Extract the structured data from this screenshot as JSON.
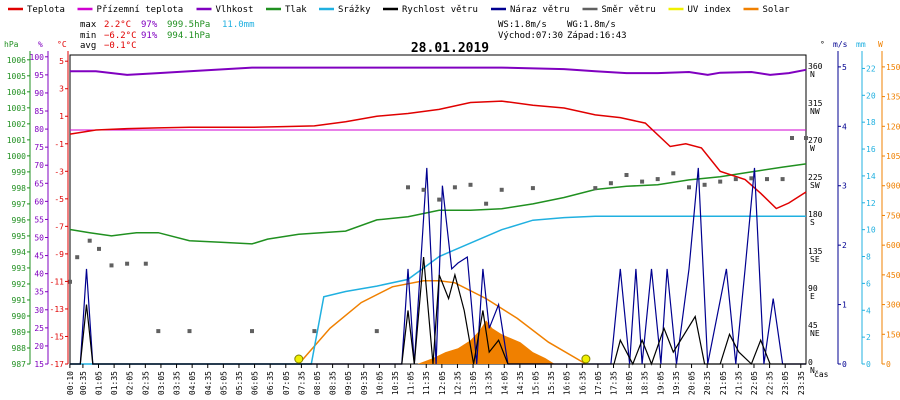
{
  "legend": [
    {
      "label": "Teplota",
      "color": "#e00000"
    },
    {
      "label": "Přízemní teplota",
      "color": "#d000d0"
    },
    {
      "label": "Vlhkost",
      "color": "#8000c0"
    },
    {
      "label": "Tlak",
      "color": "#209020"
    },
    {
      "label": "Srážky",
      "color": "#20b0e0"
    },
    {
      "label": "Rychlost větru",
      "color": "#000000"
    },
    {
      "label": "Náraz větru",
      "color": "#000090"
    },
    {
      "label": "Směr větru",
      "color": "#606060"
    },
    {
      "label": "UV index",
      "color": "#f0f000"
    },
    {
      "label": "Solar",
      "color": "#f08000"
    }
  ],
  "stats": {
    "max_label": "max",
    "max_temp": "2.2°C",
    "max_hum": "97%",
    "max_press": "999.5hPa",
    "max_rain": "11.0mm",
    "min_label": "min",
    "min_temp": "−6.2°C",
    "min_hum": "91%",
    "min_press": "994.1hPa",
    "avg_label": "avg",
    "avg_temp": "−0.1°C",
    "ws": "WS:1.8m/s",
    "wg": "WG:1.8m/s",
    "sunrise": "Východ:07:30",
    "sunset": "Západ:16:43"
  },
  "date": "28.01.2019",
  "axes": {
    "hpa_unit": "hPa",
    "pct_unit": "%",
    "c_unit": "°C",
    "deg_unit": "°",
    "ms_unit": "m/s",
    "mm_unit": "mm",
    "w_unit": "W",
    "x_unit": "čas",
    "hpa_ticks": [
      "1006",
      "1005",
      "1004",
      "1003",
      "1002",
      "1001",
      "1000",
      "999",
      "998",
      "997",
      "996",
      "995",
      "994",
      "993",
      "992",
      "991",
      "990",
      "989",
      "988",
      "987"
    ],
    "pct_ticks": [
      "100",
      "95",
      "90",
      "85",
      "80",
      "75",
      "70",
      "65",
      "60",
      "55",
      "50",
      "45",
      "40",
      "35",
      "30",
      "25",
      "20",
      "15"
    ],
    "c_ticks": [
      "5",
      "3",
      "1",
      "-1",
      "-3",
      "-5",
      "-7",
      "-9",
      "-11",
      "-13",
      "-15",
      "-17"
    ],
    "deg_ticks": [
      "360",
      "315",
      "270",
      "225",
      "180",
      "135",
      "90",
      "45",
      "0"
    ],
    "dir_labels": [
      "N",
      "NW",
      "W",
      "SW",
      "S",
      "SE",
      "E",
      "NE",
      "N"
    ],
    "ms_ticks": [
      "5",
      "4",
      "3",
      "2",
      "1",
      "0"
    ],
    "mm_ticks": [
      "22",
      "20",
      "18",
      "16",
      "14",
      "12",
      "10",
      "8",
      "6",
      "4",
      "2",
      "0"
    ],
    "w_ticks": [
      "1500",
      "1350",
      "1200",
      "1050",
      "900",
      "750",
      "600",
      "450",
      "300",
      "150",
      "0"
    ],
    "x_ticks": [
      "00:10",
      "00:35",
      "01:05",
      "01:35",
      "02:05",
      "02:35",
      "03:05",
      "03:35",
      "04:05",
      "04:35",
      "05:05",
      "05:35",
      "06:05",
      "06:35",
      "07:05",
      "07:35",
      "08:05",
      "08:35",
      "09:05",
      "09:35",
      "10:05",
      "10:35",
      "11:05",
      "11:35",
      "12:05",
      "12:35",
      "13:05",
      "13:35",
      "14:05",
      "14:35",
      "15:05",
      "15:35",
      "16:05",
      "16:35",
      "17:05",
      "17:35",
      "18:05",
      "18:35",
      "19:05",
      "19:35",
      "20:05",
      "20:35",
      "21:05",
      "21:35",
      "22:05",
      "22:35",
      "23:05",
      "23:35"
    ]
  },
  "chart_data": {
    "type": "line",
    "title": "28.01.2019",
    "x_range_hours": [
      0.17,
      23.75
    ],
    "series": [
      {
        "name": "Teplota",
        "unit": "°C",
        "color": "#e00000",
        "points": [
          [
            0.17,
            -0.3
          ],
          [
            1,
            0.0
          ],
          [
            2,
            0.1
          ],
          [
            3,
            0.15
          ],
          [
            4,
            0.2
          ],
          [
            6,
            0.2
          ],
          [
            7,
            0.25
          ],
          [
            8,
            0.3
          ],
          [
            9,
            0.6
          ],
          [
            10,
            1.0
          ],
          [
            11,
            1.2
          ],
          [
            12,
            1.5
          ],
          [
            13,
            2.0
          ],
          [
            14,
            2.1
          ],
          [
            15,
            1.8
          ],
          [
            16,
            1.6
          ],
          [
            17,
            1.1
          ],
          [
            17.8,
            0.9
          ],
          [
            18.6,
            0.5
          ],
          [
            19.4,
            -1.2
          ],
          [
            19.9,
            -1.0
          ],
          [
            20.4,
            -1.3
          ],
          [
            21,
            -3.0
          ],
          [
            21.8,
            -3.6
          ],
          [
            22.3,
            -4.6
          ],
          [
            22.8,
            -5.7
          ],
          [
            23.2,
            -5.3
          ],
          [
            23.75,
            -4.5
          ]
        ]
      },
      {
        "name": "Přízemní teplota",
        "unit": "°C",
        "color": "#d000d0",
        "points": [
          [
            0.17,
            0.0
          ],
          [
            23.75,
            0.0
          ]
        ]
      },
      {
        "name": "Vlhkost",
        "unit": "%",
        "color": "#8000c0",
        "points": [
          [
            0.17,
            96
          ],
          [
            1,
            96
          ],
          [
            2,
            95
          ],
          [
            3,
            95.5
          ],
          [
            4,
            96
          ],
          [
            6,
            97
          ],
          [
            8,
            97
          ],
          [
            10,
            97
          ],
          [
            12,
            97
          ],
          [
            14,
            97
          ],
          [
            16,
            96.6
          ],
          [
            17,
            96
          ],
          [
            18,
            95.5
          ],
          [
            19,
            95.5
          ],
          [
            20,
            95.8
          ],
          [
            20.6,
            95
          ],
          [
            21,
            95.6
          ],
          [
            22,
            95.8
          ],
          [
            22.6,
            95
          ],
          [
            23.2,
            95.5
          ],
          [
            23.75,
            96.4
          ]
        ]
      },
      {
        "name": "Tlak",
        "unit": "hPa",
        "color": "#209020",
        "points": [
          [
            0.17,
            995.4
          ],
          [
            0.8,
            995.2
          ],
          [
            1.5,
            995.0
          ],
          [
            2.3,
            995.2
          ],
          [
            3,
            995.2
          ],
          [
            4,
            994.7
          ],
          [
            5,
            994.6
          ],
          [
            6,
            994.5
          ],
          [
            6.5,
            994.8
          ],
          [
            7.5,
            995.1
          ],
          [
            9,
            995.3
          ],
          [
            10,
            996.0
          ],
          [
            11,
            996.2
          ],
          [
            12,
            996.6
          ],
          [
            13,
            996.6
          ],
          [
            14,
            996.7
          ],
          [
            15,
            997.0
          ],
          [
            16,
            997.4
          ],
          [
            17,
            997.9
          ],
          [
            18,
            998.1
          ],
          [
            19,
            998.2
          ],
          [
            20,
            998.5
          ],
          [
            21,
            998.7
          ],
          [
            22,
            999.0
          ],
          [
            23,
            999.3
          ],
          [
            23.75,
            999.5
          ]
        ]
      },
      {
        "name": "Srážky",
        "unit": "mm",
        "color": "#20b0e0",
        "points": [
          [
            0.17,
            0
          ],
          [
            7.9,
            0
          ],
          [
            8.3,
            5
          ],
          [
            9,
            5.4
          ],
          [
            10,
            5.8
          ],
          [
            11,
            6.3
          ],
          [
            12,
            8.0
          ],
          [
            13,
            9.0
          ],
          [
            14,
            10.0
          ],
          [
            15,
            10.7
          ],
          [
            16,
            10.9
          ],
          [
            17,
            11.0
          ],
          [
            23.75,
            11.0
          ]
        ]
      },
      {
        "name": "Rychlost větru",
        "unit": "m/s",
        "color": "#000000",
        "points": [
          [
            0.17,
            0
          ],
          [
            0.5,
            0
          ],
          [
            0.7,
            1.0
          ],
          [
            0.9,
            0
          ],
          [
            10.8,
            0
          ],
          [
            11,
            0.9
          ],
          [
            11.2,
            0
          ],
          [
            11.5,
            1.8
          ],
          [
            11.8,
            0
          ],
          [
            12,
            1.5
          ],
          [
            12.3,
            1.1
          ],
          [
            12.5,
            1.5
          ],
          [
            12.8,
            0.9
          ],
          [
            13.1,
            0
          ],
          [
            13.4,
            0.9
          ],
          [
            13.6,
            0.2
          ],
          [
            13.9,
            0.4
          ],
          [
            14.2,
            0
          ],
          [
            17.6,
            0
          ],
          [
            17.8,
            0.4
          ],
          [
            18.2,
            0
          ],
          [
            18.5,
            0.4
          ],
          [
            18.8,
            0
          ],
          [
            19.2,
            0.6
          ],
          [
            19.5,
            0.2
          ],
          [
            20.2,
            0.8
          ],
          [
            20.5,
            0
          ],
          [
            21,
            0
          ],
          [
            21.3,
            0.5
          ],
          [
            21.6,
            0.2
          ],
          [
            22,
            0
          ],
          [
            22.3,
            0.4
          ],
          [
            22.6,
            0
          ],
          [
            23.75,
            0
          ]
        ]
      },
      {
        "name": "Náraz větru",
        "unit": "m/s",
        "color": "#000090",
        "points": [
          [
            0.17,
            0
          ],
          [
            0.5,
            0
          ],
          [
            0.7,
            1.6
          ],
          [
            0.9,
            0
          ],
          [
            10.8,
            0
          ],
          [
            11,
            1.6
          ],
          [
            11.2,
            0
          ],
          [
            11.6,
            3.3
          ],
          [
            11.9,
            0
          ],
          [
            12.1,
            3.0
          ],
          [
            12.4,
            1.6
          ],
          [
            12.6,
            1.7
          ],
          [
            12.9,
            1.8
          ],
          [
            13.2,
            0
          ],
          [
            13.4,
            1.6
          ],
          [
            13.6,
            0.6
          ],
          [
            13.9,
            1.0
          ],
          [
            14.2,
            0
          ],
          [
            17.5,
            0
          ],
          [
            17.8,
            1.6
          ],
          [
            18.1,
            0
          ],
          [
            18.3,
            1.6
          ],
          [
            18.5,
            0
          ],
          [
            18.8,
            1.6
          ],
          [
            19.1,
            0
          ],
          [
            19.3,
            1.6
          ],
          [
            19.6,
            0
          ],
          [
            20,
            1.6
          ],
          [
            20.3,
            3.3
          ],
          [
            20.6,
            0
          ],
          [
            21.2,
            1.6
          ],
          [
            21.5,
            0
          ],
          [
            21.8,
            1.6
          ],
          [
            22.1,
            3.3
          ],
          [
            22.4,
            0
          ],
          [
            22.7,
            1.1
          ],
          [
            23,
            0
          ],
          [
            23.75,
            0
          ]
        ]
      },
      {
        "name": "Směr větru",
        "unit": "°",
        "color": "#606060",
        "points": [
          [
            0.17,
            100
          ],
          [
            0.4,
            130
          ],
          [
            0.8,
            150
          ],
          [
            1.1,
            140
          ],
          [
            1.5,
            120
          ],
          [
            2,
            122
          ],
          [
            2.6,
            122
          ],
          [
            3,
            40
          ],
          [
            4,
            40
          ],
          [
            6,
            40
          ],
          [
            8,
            40
          ],
          [
            10,
            40
          ],
          [
            11,
            215
          ],
          [
            11.5,
            212
          ],
          [
            12,
            200
          ],
          [
            12.5,
            215
          ],
          [
            13,
            218
          ],
          [
            13.5,
            195
          ],
          [
            14,
            212
          ],
          [
            15,
            214
          ],
          [
            17,
            214
          ],
          [
            17.5,
            220
          ],
          [
            18,
            230
          ],
          [
            18.5,
            222
          ],
          [
            19,
            225
          ],
          [
            19.5,
            232
          ],
          [
            20,
            215
          ],
          [
            20.5,
            218
          ],
          [
            21,
            222
          ],
          [
            21.5,
            225
          ],
          [
            22,
            226
          ],
          [
            22.5,
            225
          ],
          [
            23,
            225
          ],
          [
            23.3,
            275
          ],
          [
            23.75,
            275
          ]
        ]
      },
      {
        "name": "UV index",
        "unit": "",
        "color": "#f0f000",
        "points": [
          [
            7.5,
            0
          ],
          [
            16.7,
            0
          ]
        ]
      },
      {
        "name": "Solar",
        "unit": "W",
        "color": "#f08000",
        "points": [
          [
            7.5,
            0
          ],
          [
            8.5,
            180
          ],
          [
            9.5,
            310
          ],
          [
            10.5,
            390
          ],
          [
            11.5,
            420
          ],
          [
            12,
            420
          ],
          [
            12.5,
            410
          ],
          [
            13.5,
            330
          ],
          [
            14.5,
            230
          ],
          [
            15.5,
            110
          ],
          [
            16.7,
            0
          ]
        ],
        "measured_points": [
          [
            11.3,
            0
          ],
          [
            11.8,
            30
          ],
          [
            12.2,
            60
          ],
          [
            12.6,
            80
          ],
          [
            13,
            120
          ],
          [
            13.3,
            170
          ],
          [
            13.5,
            220
          ],
          [
            13.7,
            180
          ],
          [
            14,
            150
          ],
          [
            14.3,
            130
          ],
          [
            14.6,
            110
          ],
          [
            15,
            60
          ],
          [
            15.4,
            30
          ],
          [
            15.7,
            0
          ]
        ]
      }
    ]
  }
}
